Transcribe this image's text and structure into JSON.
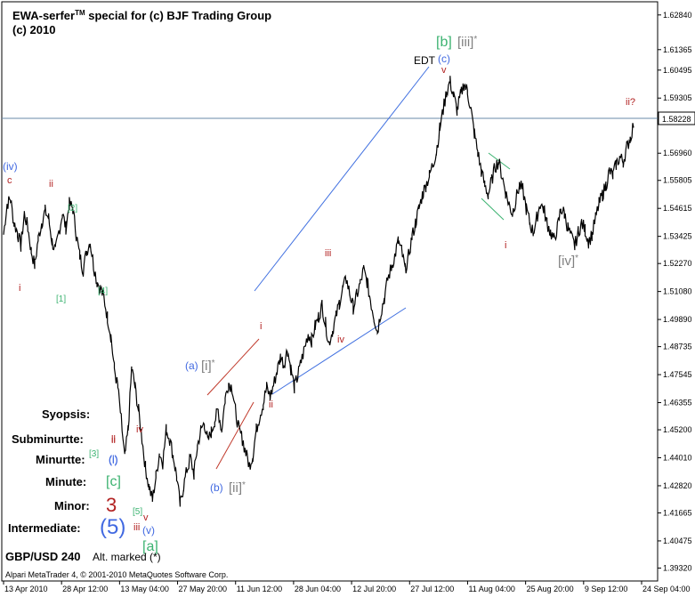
{
  "header": {
    "title_prefix": "EWA-serfer",
    "title_tm": "TM",
    "title_suffix": " special for (c) BJF Trading Group",
    "year": "(c) 2010"
  },
  "symbol": "GBP/USD 240",
  "alt_marked": "Alt. marked (*)",
  "footer": "Alpari MetaTrader 4, © 2001-2010 MetaQuotes Software Corp.",
  "current_price_label": "1.58228",
  "legend": [
    {
      "label": "Syopsis:",
      "marker": "",
      "color": "#000000"
    },
    {
      "label": "Subminurtte:",
      "marker": "ii",
      "color": "#b22222"
    },
    {
      "label": "Minurtte:",
      "marker": "(i)",
      "color": "#4169e1"
    },
    {
      "label": "Minute:",
      "marker": "[c]",
      "color": "#3cb371"
    },
    {
      "label": "Minor:",
      "marker": "3",
      "color": "#b22222"
    },
    {
      "label": "Intermediate:",
      "marker": "(5)",
      "color": "#4169e1"
    }
  ],
  "colors": {
    "price": "#000000",
    "axis": "#000000",
    "red": "#b22222",
    "blue": "#4169e1",
    "green": "#3cb371",
    "gray": "#808080",
    "channel_blue": "#3f6fe0",
    "channel_red": "#c0392b",
    "channel_green": "#3cb371",
    "hline": "#6a8aa8"
  },
  "chart_data": {
    "type": "line",
    "title": "",
    "xlabel": "",
    "ylabel": "",
    "ylim": [
      1.3877,
      1.634
    ],
    "y_ticks": [
      "1.62840",
      "1.61365",
      "1.60495",
      "1.59305",
      "1.56960",
      "1.55805",
      "1.54615",
      "1.53425",
      "1.52270",
      "1.51080",
      "1.49890",
      "1.48735",
      "1.47545",
      "1.46355",
      "1.45200",
      "1.44010",
      "1.42820",
      "1.41665",
      "1.40475",
      "1.39320"
    ],
    "x_ticks": [
      "13 Apr 2010",
      "28 Apr 12:00",
      "13 May 04:00",
      "27 May 20:00",
      "11 Jun 12:00",
      "28 Jun 04:00",
      "12 Jul 20:00",
      "27 Jul 12:00",
      "11 Aug 04:00",
      "25 Aug 20:00",
      "9 Sep 12:00",
      "24 Sep 04:00"
    ],
    "series": [
      {
        "values": [
          1.535,
          1.548,
          1.55,
          1.54,
          1.536,
          1.53,
          1.544,
          1.538,
          1.528,
          1.522,
          1.533,
          1.54,
          1.545,
          1.542,
          1.532,
          1.528,
          1.536,
          1.544,
          1.538,
          1.548,
          1.546,
          1.535,
          1.526,
          1.52,
          1.528,
          1.532,
          1.522,
          1.515,
          1.512,
          1.508,
          1.5,
          1.492,
          1.478,
          1.47,
          1.456,
          1.44,
          1.452,
          1.478,
          1.47,
          1.46,
          1.448,
          1.436,
          1.428,
          1.422,
          1.432,
          1.442,
          1.438,
          1.452,
          1.448,
          1.441,
          1.432,
          1.42,
          1.428,
          1.435,
          1.44,
          1.433,
          1.445,
          1.452,
          1.455,
          1.447,
          1.451,
          1.456,
          1.46,
          1.452,
          1.465,
          1.472,
          1.47,
          1.46,
          1.452,
          1.448,
          1.442,
          1.437,
          1.441,
          1.452,
          1.458,
          1.463,
          1.47,
          1.466,
          1.471,
          1.477,
          1.483,
          1.48,
          1.486,
          1.478,
          1.47,
          1.475,
          1.481,
          1.487,
          1.493,
          1.49,
          1.496,
          1.5,
          1.505,
          1.497,
          1.489,
          1.494,
          1.5,
          1.506,
          1.512,
          1.516,
          1.51,
          1.504,
          1.509,
          1.514,
          1.52,
          1.515,
          1.507,
          1.5,
          1.494,
          1.502,
          1.508,
          1.516,
          1.521,
          1.526,
          1.532,
          1.528,
          1.52,
          1.526,
          1.534,
          1.54,
          1.546,
          1.552,
          1.556,
          1.56,
          1.565,
          1.57,
          1.58,
          1.588,
          1.596,
          1.6,
          1.594,
          1.588,
          1.594,
          1.599,
          1.596,
          1.588,
          1.578,
          1.57,
          1.562,
          1.556,
          1.552,
          1.558,
          1.564,
          1.566,
          1.56,
          1.553,
          1.548,
          1.544,
          1.55,
          1.556,
          1.554,
          1.546,
          1.54,
          1.536,
          1.542,
          1.548,
          1.546,
          1.54,
          1.536,
          1.533,
          1.538,
          1.546,
          1.544,
          1.538,
          1.534,
          1.53,
          1.536,
          1.54,
          1.537,
          1.532,
          1.535,
          1.542,
          1.548,
          1.552,
          1.556,
          1.562,
          1.56,
          1.565,
          1.568,
          1.566,
          1.572,
          1.576,
          1.582
        ]
      }
    ]
  },
  "wave_labels": [
    {
      "text": "(iv)",
      "color": "blue",
      "pos": "left"
    },
    {
      "text": "c",
      "color": "red"
    },
    {
      "text": "ii",
      "color": "red"
    },
    {
      "text": "[2]",
      "color": "green"
    },
    {
      "text": "i",
      "color": "red"
    },
    {
      "text": "[1]",
      "color": "green"
    },
    {
      "text": "[4]",
      "color": "green"
    },
    {
      "text": "ii",
      "color": "red"
    },
    {
      "text": "iv",
      "color": "red"
    },
    {
      "text": "[3]",
      "color": "green"
    },
    {
      "text": "(i)",
      "color": "blue"
    },
    {
      "text": "[5]",
      "color": "green"
    },
    {
      "text": "v",
      "color": "red"
    },
    {
      "text": "iii",
      "color": "red"
    },
    {
      "text": "(v)",
      "color": "blue"
    },
    {
      "text": "[a]",
      "color": "green"
    },
    {
      "text": "(a)",
      "color": "blue"
    },
    {
      "text": "[i]",
      "color": "gray",
      "star": "*"
    },
    {
      "text": "(b)",
      "color": "blue"
    },
    {
      "text": "[ii]",
      "color": "gray",
      "star": "*"
    },
    {
      "text": "i",
      "color": "red"
    },
    {
      "text": "ii",
      "color": "red"
    },
    {
      "text": "iii",
      "color": "red"
    },
    {
      "text": "iv",
      "color": "red"
    },
    {
      "text": "EDT",
      "color": "black"
    },
    {
      "text": "(c)",
      "color": "blue"
    },
    {
      "text": "v",
      "color": "red"
    },
    {
      "text": "[b]",
      "color": "green"
    },
    {
      "text": "[iii]",
      "color": "gray",
      "star": "*"
    },
    {
      "text": "i",
      "color": "red"
    },
    {
      "text": "[iv]",
      "color": "gray",
      "star": "*"
    },
    {
      "text": "ii?",
      "color": "red"
    }
  ]
}
